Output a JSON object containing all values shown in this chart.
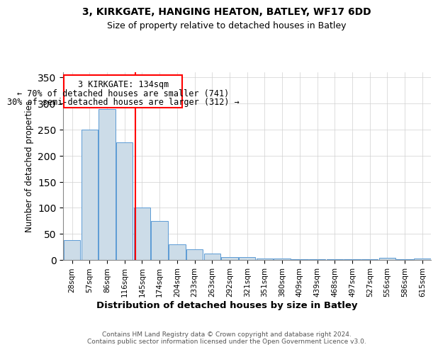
{
  "title1": "3, KIRKGATE, HANGING HEATON, BATLEY, WF17 6DD",
  "title2": "Size of property relative to detached houses in Batley",
  "xlabel": "Distribution of detached houses by size in Batley",
  "ylabel": "Number of detached properties",
  "categories": [
    "28sqm",
    "57sqm",
    "86sqm",
    "116sqm",
    "145sqm",
    "174sqm",
    "204sqm",
    "233sqm",
    "263sqm",
    "292sqm",
    "321sqm",
    "351sqm",
    "380sqm",
    "409sqm",
    "439sqm",
    "468sqm",
    "497sqm",
    "527sqm",
    "556sqm",
    "586sqm",
    "615sqm"
  ],
  "values": [
    38,
    250,
    290,
    225,
    101,
    75,
    30,
    20,
    12,
    6,
    5,
    3,
    3,
    2,
    2,
    1,
    1,
    1,
    4,
    1,
    3
  ],
  "bar_color": "#ccdce8",
  "bar_edge_color": "#5b9bd5",
  "vline_x": 3.62,
  "vline_color": "red",
  "annotation_line1": "3 KIRKGATE: 134sqm",
  "annotation_line2": "← 70% of detached houses are smaller (741)",
  "annotation_line3": "30% of semi-detached houses are larger (312) →",
  "footer": "Contains HM Land Registry data © Crown copyright and database right 2024.\nContains public sector information licensed under the Open Government Licence v3.0.",
  "ylim": [
    0,
    360
  ],
  "yticks": [
    0,
    50,
    100,
    150,
    200,
    250,
    300,
    350
  ],
  "background_color": "#ffffff",
  "grid_color": "#d0d0d0"
}
